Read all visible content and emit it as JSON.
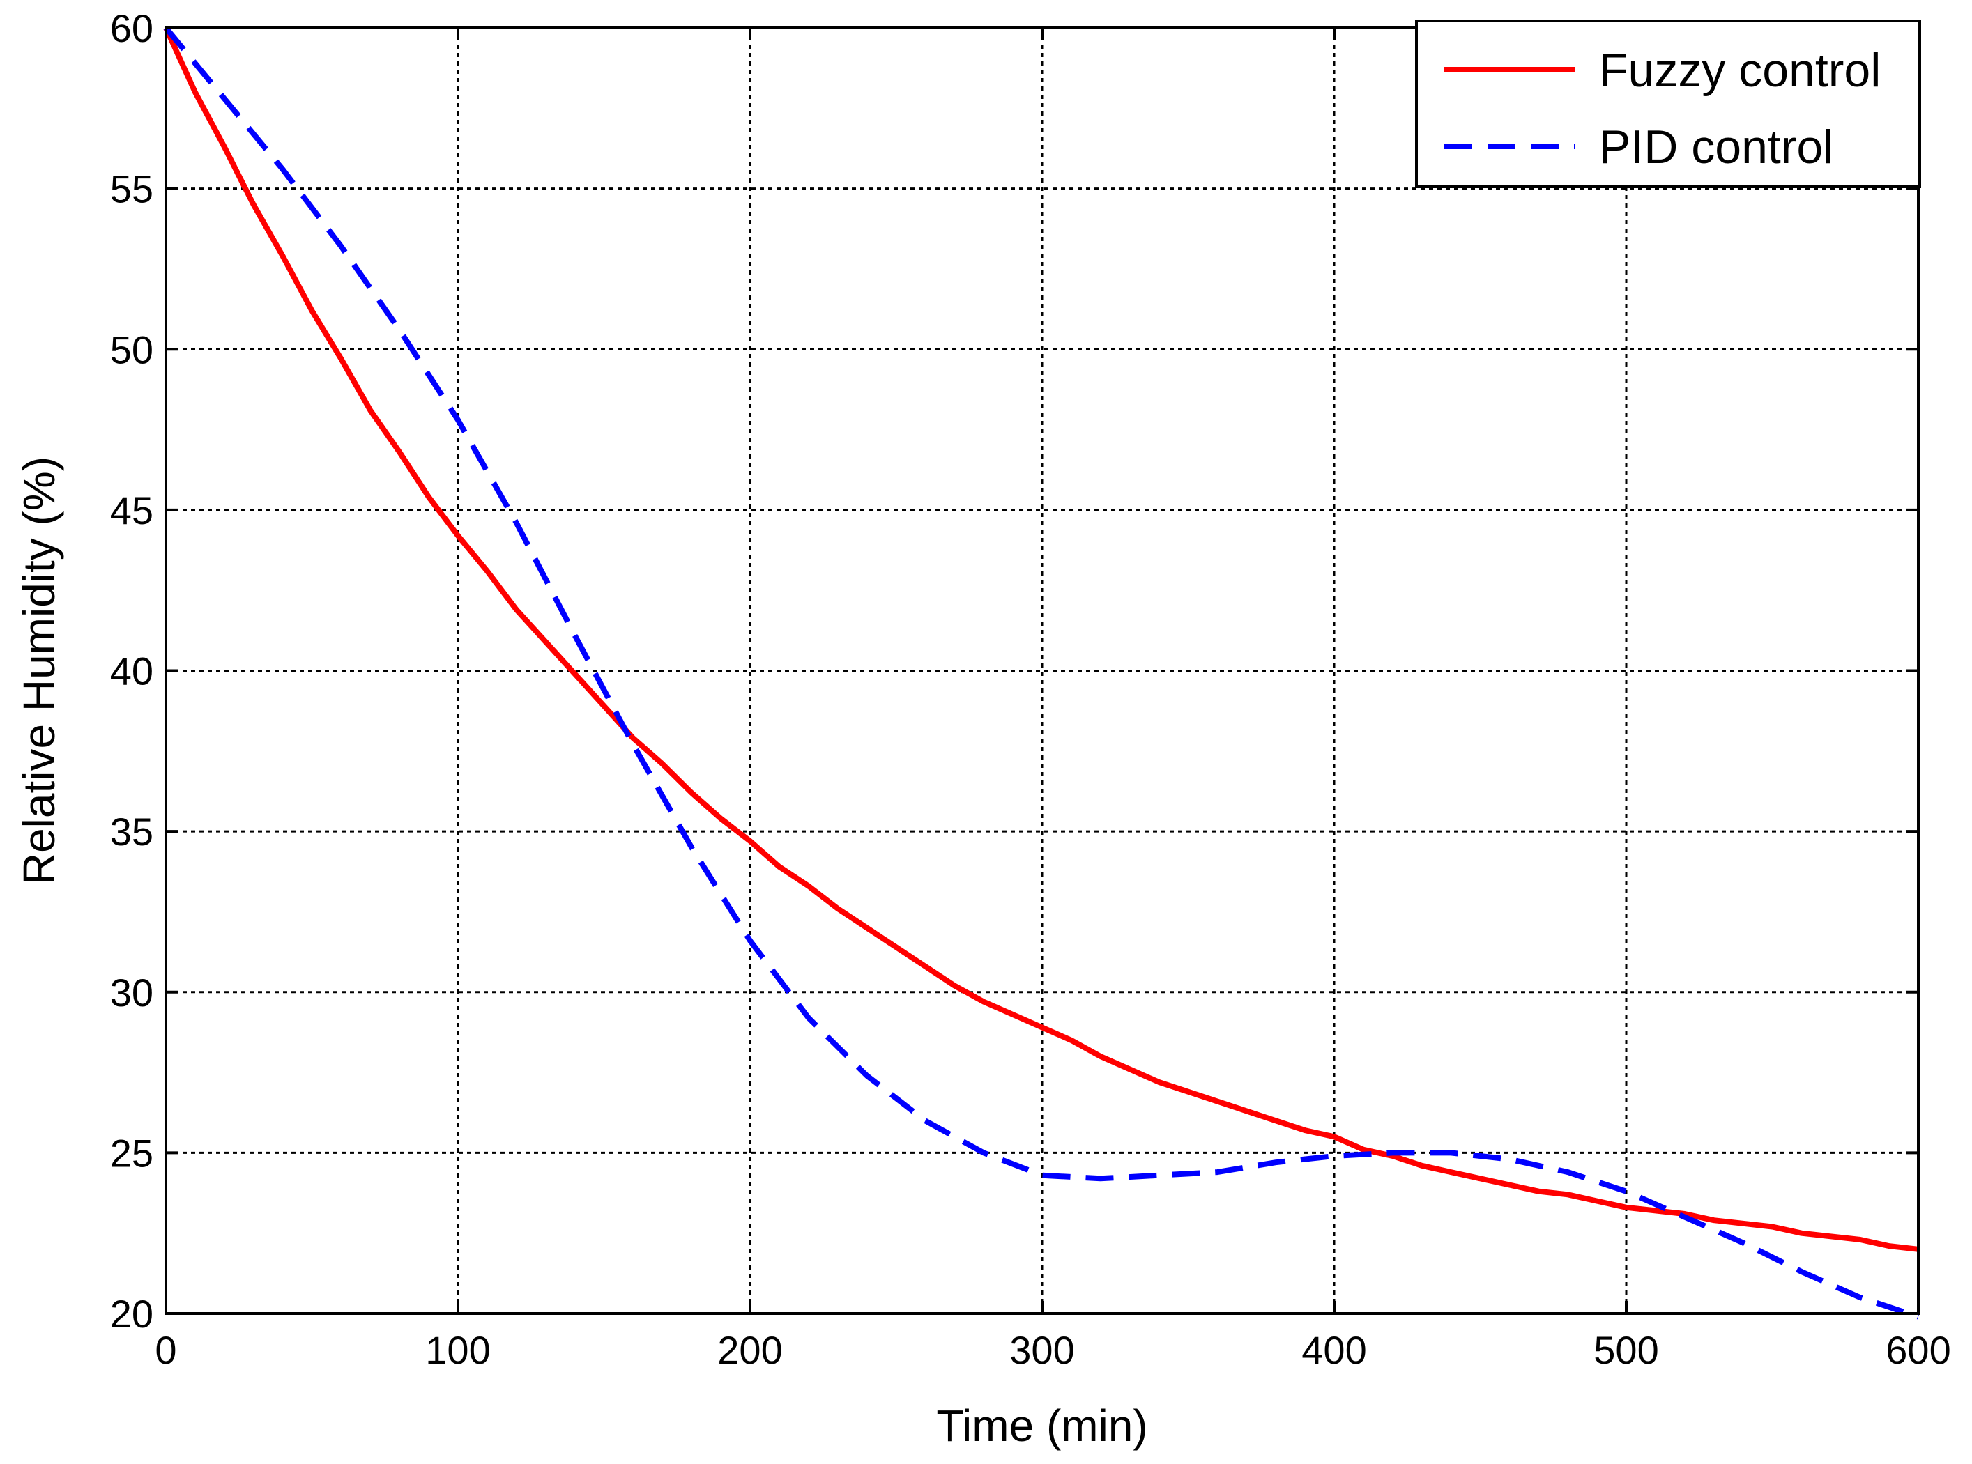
{
  "chart_data": {
    "type": "line",
    "title": "",
    "xlabel": "Time (min)",
    "ylabel": "Relative Humidity (%)",
    "xlim": [
      0,
      600
    ],
    "ylim": [
      20,
      60
    ],
    "xticks": [
      0,
      100,
      200,
      300,
      400,
      500,
      600
    ],
    "yticks": [
      20,
      25,
      30,
      35,
      40,
      45,
      50,
      55,
      60
    ],
    "grid": true,
    "legend_position": "top-right",
    "series": [
      {
        "name": "Fuzzy control",
        "color": "#ff0000",
        "style": "solid",
        "x": [
          0,
          10,
          20,
          30,
          40,
          50,
          60,
          70,
          80,
          90,
          100,
          110,
          120,
          130,
          140,
          150,
          160,
          170,
          180,
          190,
          200,
          210,
          220,
          230,
          240,
          250,
          260,
          270,
          280,
          290,
          300,
          310,
          320,
          330,
          340,
          350,
          360,
          370,
          380,
          390,
          400,
          410,
          420,
          430,
          440,
          450,
          460,
          470,
          480,
          490,
          500,
          510,
          520,
          530,
          540,
          550,
          560,
          570,
          580,
          590,
          600
        ],
        "y": [
          60,
          58.0,
          56.3,
          54.5,
          52.9,
          51.2,
          49.7,
          48.1,
          46.8,
          45.4,
          44.2,
          43.1,
          41.9,
          40.9,
          39.9,
          38.9,
          37.9,
          37.1,
          36.2,
          35.4,
          34.7,
          33.9,
          33.3,
          32.6,
          32.0,
          31.4,
          30.8,
          30.2,
          29.7,
          29.3,
          28.9,
          28.5,
          28.0,
          27.6,
          27.2,
          26.9,
          26.6,
          26.3,
          26.0,
          25.7,
          25.5,
          25.1,
          24.9,
          24.6,
          24.4,
          24.2,
          24.0,
          23.8,
          23.7,
          23.5,
          23.3,
          23.2,
          23.1,
          22.9,
          22.8,
          22.7,
          22.5,
          22.4,
          22.3,
          22.1,
          22.0
        ]
      },
      {
        "name": "PID control",
        "color": "#0000ff",
        "style": "dashed",
        "x": [
          0,
          20,
          40,
          60,
          80,
          100,
          120,
          140,
          160,
          180,
          200,
          220,
          240,
          260,
          280,
          300,
          320,
          340,
          360,
          380,
          400,
          420,
          440,
          460,
          480,
          500,
          520,
          540,
          560,
          580,
          600
        ],
        "y": [
          60,
          57.8,
          55.6,
          53.2,
          50.6,
          47.8,
          44.6,
          41.1,
          37.7,
          34.5,
          31.6,
          29.2,
          27.4,
          26.0,
          25.0,
          24.3,
          24.2,
          24.3,
          24.4,
          24.7,
          24.9,
          25.0,
          25.0,
          24.8,
          24.4,
          23.8,
          23.0,
          22.2,
          21.3,
          20.5,
          19.9
        ]
      }
    ]
  }
}
